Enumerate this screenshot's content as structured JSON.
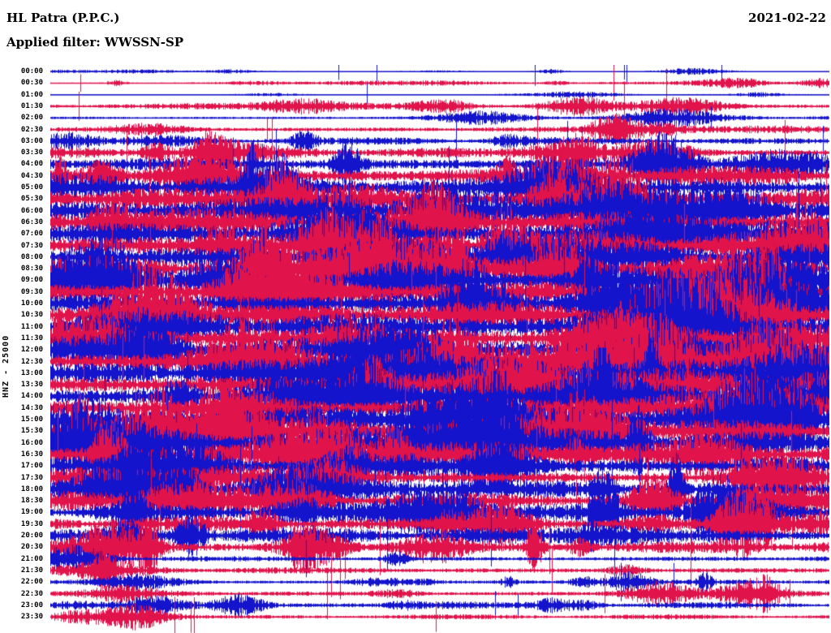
{
  "header": {
    "station": "HL Patra (P.P.C.)",
    "filter_label": "Applied filter: WWSSN-SP",
    "date": "2021-02-22"
  },
  "axis": {
    "channel_scale": "HNZ - 25000"
  },
  "palette": {
    "blue": "#1414cc",
    "red": "#e0134b"
  },
  "chart_data": {
    "type": "line",
    "subtype": "helicorder-seismogram",
    "title": "HL Patra (P.P.C.)",
    "date": "2021-02-22",
    "filter": "WWSSN-SP",
    "ylabel": "HNZ - 25000",
    "row_interval_minutes": 30,
    "rows_count": 48,
    "amp_units": "relative-activity (0=flat line, 1.2=saturated overlapping trace)",
    "rows": [
      {
        "label": "00:00",
        "color": "blue",
        "amp": 0.06
      },
      {
        "label": "00:30",
        "color": "red",
        "amp": 0.1
      },
      {
        "label": "01:00",
        "color": "blue",
        "amp": 0.05
      },
      {
        "label": "01:30",
        "color": "red",
        "amp": 0.22
      },
      {
        "label": "02:00",
        "color": "blue",
        "amp": 0.18
      },
      {
        "label": "02:30",
        "color": "red",
        "amp": 0.3
      },
      {
        "label": "03:00",
        "color": "blue",
        "amp": 0.28
      },
      {
        "label": "03:30",
        "color": "red",
        "amp": 0.45
      },
      {
        "label": "04:00",
        "color": "blue",
        "amp": 0.75
      },
      {
        "label": "04:30",
        "color": "red",
        "amp": 0.85
      },
      {
        "label": "05:00",
        "color": "blue",
        "amp": 1.0
      },
      {
        "label": "05:30",
        "color": "red",
        "amp": 1.1
      },
      {
        "label": "06:00",
        "color": "blue",
        "amp": 1.15
      },
      {
        "label": "06:30",
        "color": "red",
        "amp": 1.1
      },
      {
        "label": "07:00",
        "color": "blue",
        "amp": 1.2
      },
      {
        "label": "07:30",
        "color": "red",
        "amp": 1.15
      },
      {
        "label": "08:00",
        "color": "blue",
        "amp": 1.1
      },
      {
        "label": "08:30",
        "color": "red",
        "amp": 1.05
      },
      {
        "label": "09:00",
        "color": "blue",
        "amp": 1.15
      },
      {
        "label": "09:30",
        "color": "red",
        "amp": 1.1
      },
      {
        "label": "10:00",
        "color": "blue",
        "amp": 1.2
      },
      {
        "label": "10:30",
        "color": "red",
        "amp": 1.15
      },
      {
        "label": "11:00",
        "color": "blue",
        "amp": 1.2
      },
      {
        "label": "11:30",
        "color": "red",
        "amp": 1.1
      },
      {
        "label": "12:00",
        "color": "blue",
        "amp": 1.05
      },
      {
        "label": "12:30",
        "color": "red",
        "amp": 1.1
      },
      {
        "label": "13:00",
        "color": "blue",
        "amp": 1.15
      },
      {
        "label": "13:30",
        "color": "red",
        "amp": 1.2
      },
      {
        "label": "14:00",
        "color": "blue",
        "amp": 1.1
      },
      {
        "label": "14:30",
        "color": "red",
        "amp": 1.05
      },
      {
        "label": "15:00",
        "color": "blue",
        "amp": 1.1
      },
      {
        "label": "15:30",
        "color": "red",
        "amp": 1.0
      },
      {
        "label": "16:00",
        "color": "blue",
        "amp": 1.05
      },
      {
        "label": "16:30",
        "color": "red",
        "amp": 0.95
      },
      {
        "label": "17:00",
        "color": "blue",
        "amp": 0.85
      },
      {
        "label": "17:30",
        "color": "red",
        "amp": 0.8
      },
      {
        "label": "18:00",
        "color": "blue",
        "amp": 0.85
      },
      {
        "label": "18:30",
        "color": "red",
        "amp": 0.75
      },
      {
        "label": "19:00",
        "color": "blue",
        "amp": 0.65
      },
      {
        "label": "19:30",
        "color": "red",
        "amp": 0.55
      },
      {
        "label": "20:00",
        "color": "blue",
        "amp": 0.6
      },
      {
        "label": "20:30",
        "color": "red",
        "amp": 0.55
      },
      {
        "label": "21:00",
        "color": "blue",
        "amp": 0.28
      },
      {
        "label": "21:30",
        "color": "red",
        "amp": 0.32
      },
      {
        "label": "22:00",
        "color": "blue",
        "amp": 0.22
      },
      {
        "label": "22:30",
        "color": "red",
        "amp": 0.28
      },
      {
        "label": "23:00",
        "color": "blue",
        "amp": 0.22
      },
      {
        "label": "23:30",
        "color": "red",
        "amp": 0.18
      }
    ]
  }
}
